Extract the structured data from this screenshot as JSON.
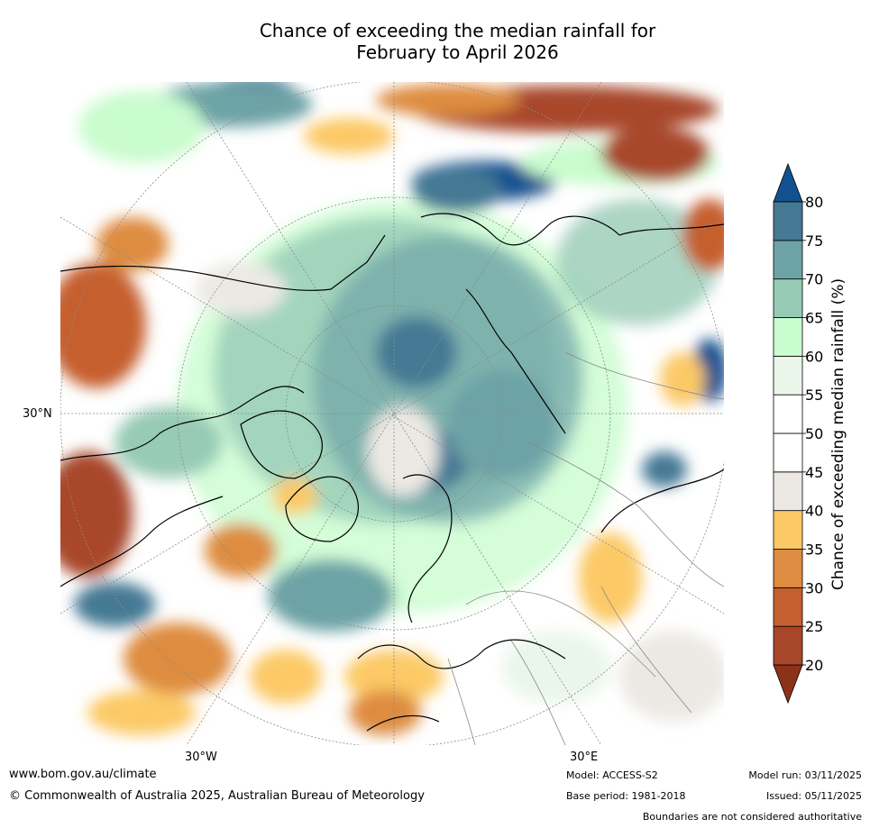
{
  "title_line1": "Chance of exceeding the median rainfall for",
  "title_line2": "February to April 2026",
  "map": {
    "lat_label": "30°N",
    "lon_labels": [
      "30°W",
      "30°E"
    ]
  },
  "colorbar": {
    "label": "Chance of exceeding median rainfall (%)",
    "ticks": [
      "20",
      "25",
      "30",
      "35",
      "40",
      "45",
      "50",
      "55",
      "60",
      "65",
      "70",
      "75",
      "80"
    ],
    "colors": [
      "#a8462a",
      "#c65f2f",
      "#de8c41",
      "#fcc966",
      "#ece9e4",
      "#ffffff",
      "#ffffff",
      "#eaf6ea",
      "#c9fcce",
      "#97cbb6",
      "#6da3a6",
      "#457994"
    ],
    "under_color": "#8c3219",
    "over_color": "#125190"
  },
  "footer": {
    "website": "www.bom.gov.au/climate",
    "copyright": "© Commonwealth of Australia 2025, Australian Bureau of Meteorology",
    "model": "Model: ACCESS-S2",
    "base_period": "Base period: 1981-2018",
    "model_run": "Model run: 03/11/2025",
    "issued": "Issued: 05/11/2025",
    "disclaimer": "Boundaries are not considered authoritative"
  }
}
